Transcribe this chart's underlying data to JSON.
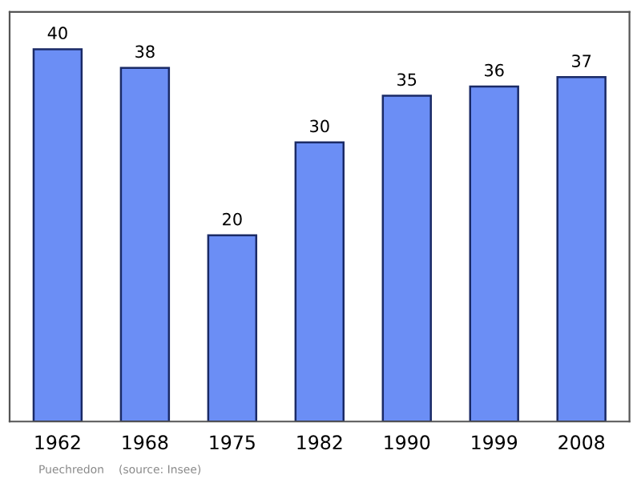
{
  "chart_data": {
    "type": "bar",
    "categories": [
      "1962",
      "1968",
      "1975",
      "1982",
      "1990",
      "1999",
      "2008"
    ],
    "values": [
      40,
      38,
      20,
      30,
      35,
      36,
      37
    ],
    "color": "#6b8ef5",
    "data_labels": true,
    "grid": false,
    "annotations": [
      "Puechredon",
      "(source: Insee)"
    ]
  }
}
